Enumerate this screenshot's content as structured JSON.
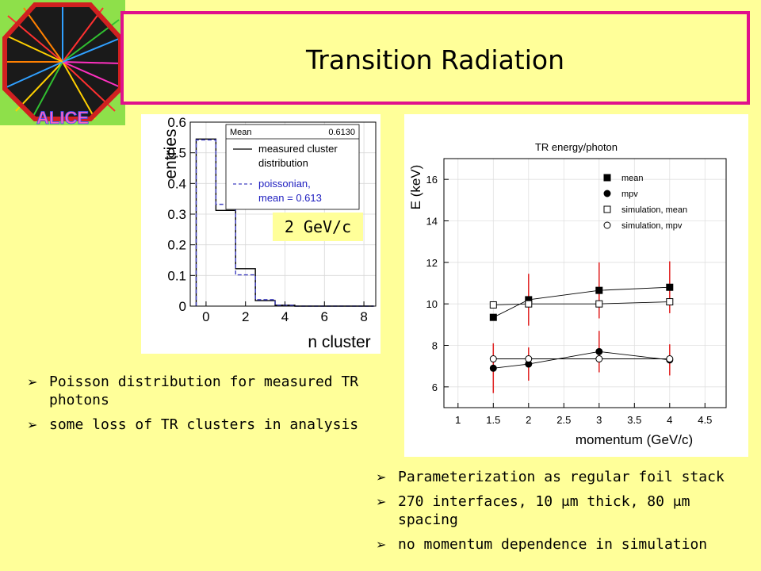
{
  "slide": {
    "title": "Transition Radiation",
    "logo_text": "ALICE",
    "bullets_left": [
      "Poisson distribution for measured TR photons",
      "some loss of TR clusters in analysis"
    ],
    "bullets_right": [
      "Parameterization as regular foil stack",
      "270 interfaces, 10 μm thick, 80 μm spacing",
      "no momentum dependence in simulation"
    ],
    "bullet_glyph": "➢",
    "colors": {
      "background": "#ffff99",
      "title_border": "#e0108c",
      "error_bars": "#e02020"
    }
  },
  "chart_data": [
    {
      "type": "histogram",
      "title": "",
      "xlabel": "n cluster",
      "ylabel": "entries",
      "xlim": [
        -0.8,
        8.6
      ],
      "ylim": [
        0,
        0.6
      ],
      "xticks": [
        0,
        2,
        4,
        6,
        8
      ],
      "yticks": [
        0,
        0.1,
        0.2,
        0.3,
        0.4,
        0.5,
        0.6
      ],
      "bin_edges": [
        -0.5,
        0.5,
        1.5,
        2.5,
        3.5,
        4.5,
        5.5,
        6.5,
        7.5,
        8.5
      ],
      "series": [
        {
          "name": "measured cluster distribution",
          "style": "solid",
          "values": [
            0.545,
            0.312,
            0.122,
            0.018,
            0.003,
            0.0,
            0.0,
            0.0,
            0.0
          ]
        },
        {
          "name": "poissonian, mean = 0.613",
          "style": "dashed",
          "values": [
            0.542,
            0.332,
            0.102,
            0.021,
            0.003,
            0.0,
            0.0,
            0.0,
            0.0
          ]
        }
      ],
      "stats": {
        "label": "Mean",
        "value": "0.6130"
      },
      "legend": [
        {
          "text": "measured cluster",
          "style": "solid"
        },
        {
          "text": "distribution",
          "style": "none"
        },
        {
          "text": "poissonian,",
          "style": "dashed"
        },
        {
          "text": "mean = 0.613",
          "style": "none"
        }
      ],
      "annotation": "2 GeV/c"
    },
    {
      "type": "scatter",
      "title": "TR energy/photon",
      "xlabel": "momentum (GeV/c)",
      "ylabel": "E (keV)",
      "xlim": [
        0.8,
        4.8
      ],
      "ylim": [
        5.0,
        17.0
      ],
      "xticks": [
        1,
        1.5,
        2,
        2.5,
        3,
        3.5,
        4,
        4.5
      ],
      "xtick_labels": [
        "1",
        "1.5",
        "2",
        "2.5",
        "3",
        "3.5",
        "4",
        "4.5"
      ],
      "yticks": [
        6,
        8,
        10,
        12,
        14,
        16
      ],
      "legend_position": "top-right",
      "series": [
        {
          "name": "mean",
          "marker": "filled-square",
          "x": [
            1.5,
            2,
            3,
            4
          ],
          "y": [
            9.35,
            10.2,
            10.65,
            10.8
          ],
          "err": [
            0.0,
            1.25,
            1.35,
            1.25
          ]
        },
        {
          "name": "mpv",
          "marker": "filled-circle",
          "x": [
            1.5,
            2,
            3,
            4
          ],
          "y": [
            6.9,
            7.1,
            7.7,
            7.3
          ],
          "err": [
            1.2,
            0.8,
            1.0,
            0.75
          ]
        },
        {
          "name": "simulation, mean",
          "marker": "open-square",
          "x": [
            1.5,
            2,
            3,
            4
          ],
          "y": [
            9.95,
            10.0,
            10.0,
            10.1
          ],
          "err": [
            0.0,
            0.0,
            0.0,
            0.0
          ]
        },
        {
          "name": "simulation, mpv",
          "marker": "open-circle",
          "x": [
            1.5,
            2,
            3,
            4
          ],
          "y": [
            7.35,
            7.35,
            7.35,
            7.35
          ],
          "err": [
            0.0,
            0.0,
            0.0,
            0.0
          ]
        }
      ],
      "connect_lines": [
        "mean",
        "mpv",
        "simulation, mean",
        "simulation, mpv"
      ]
    }
  ]
}
